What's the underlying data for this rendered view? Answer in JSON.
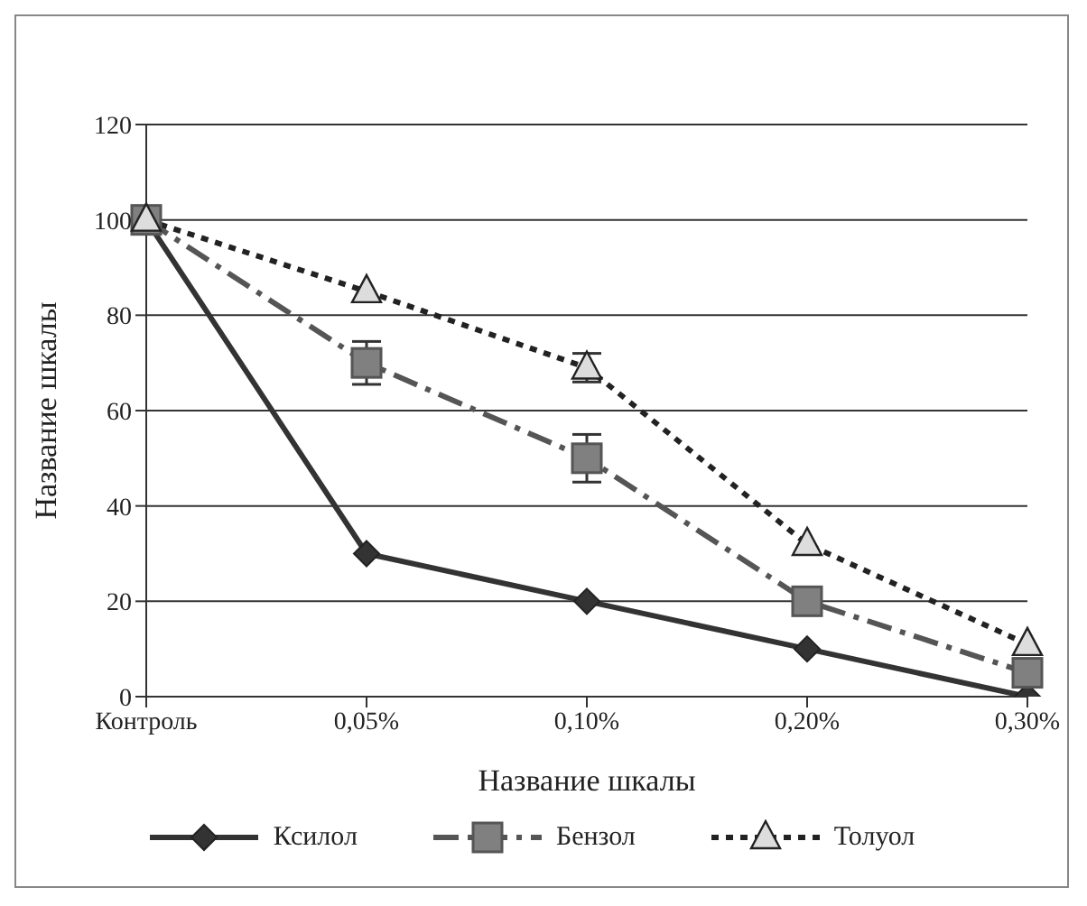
{
  "chart_data": {
    "type": "line",
    "xlabel": "Название шкалы",
    "ylabel": "Название шкалы",
    "categories": [
      "Контроль",
      "0,05%",
      "0,10%",
      "0,20%",
      "0,30%"
    ],
    "series": [
      {
        "name": "Ксилол",
        "color": "#333333",
        "values": [
          100,
          30,
          20,
          10,
          0
        ],
        "marker": "diamond",
        "line_style": "solid"
      },
      {
        "name": "Бензол",
        "color": "#808080",
        "values": [
          100,
          70,
          50,
          20,
          5
        ],
        "errors": [
          null,
          4.5,
          5,
          null,
          null
        ],
        "marker": "square",
        "line_style": "dashed"
      },
      {
        "name": "Толуол",
        "color": "#dddddd",
        "values": [
          100,
          85,
          69,
          32,
          11
        ],
        "errors": [
          null,
          null,
          3,
          null,
          null
        ],
        "marker": "triangle",
        "line_style": "dotted"
      }
    ],
    "ylim": [
      0,
      120
    ],
    "yticks": [
      0,
      20,
      40,
      60,
      80,
      100,
      120
    ],
    "grid": "y",
    "legend": "bottom"
  }
}
